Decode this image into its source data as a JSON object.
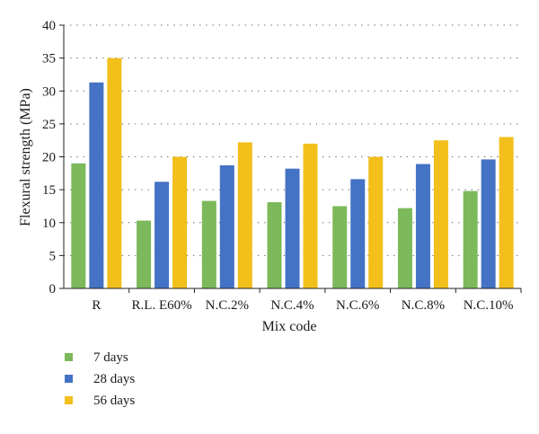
{
  "chart_data": {
    "type": "bar",
    "xlabel": "Mix code",
    "ylabel": "Flexural strength (MPa)",
    "ylim": [
      0,
      40
    ],
    "yticks": [
      0,
      5,
      10,
      15,
      20,
      25,
      30,
      35,
      40
    ],
    "grid": "horizontal dotted",
    "legend_position": "bottom-left",
    "categories": [
      "R",
      "R.L. E60%",
      "N.C.2%",
      "N.C.4%",
      "N.C.6%",
      "N.C.8%",
      "N.C.10%"
    ],
    "series": [
      {
        "name": "7 days",
        "color": "#7cb95a",
        "values": [
          19.0,
          10.3,
          13.3,
          13.1,
          12.5,
          12.2,
          14.8
        ]
      },
      {
        "name": "28 days",
        "color": "#4472c4",
        "values": [
          31.3,
          16.2,
          18.7,
          18.2,
          16.6,
          18.9,
          19.6
        ]
      },
      {
        "name": "56 days",
        "color": "#f2bf1b",
        "values": [
          35.0,
          20.0,
          22.2,
          22.0,
          20.0,
          22.5,
          23.0
        ]
      }
    ]
  }
}
